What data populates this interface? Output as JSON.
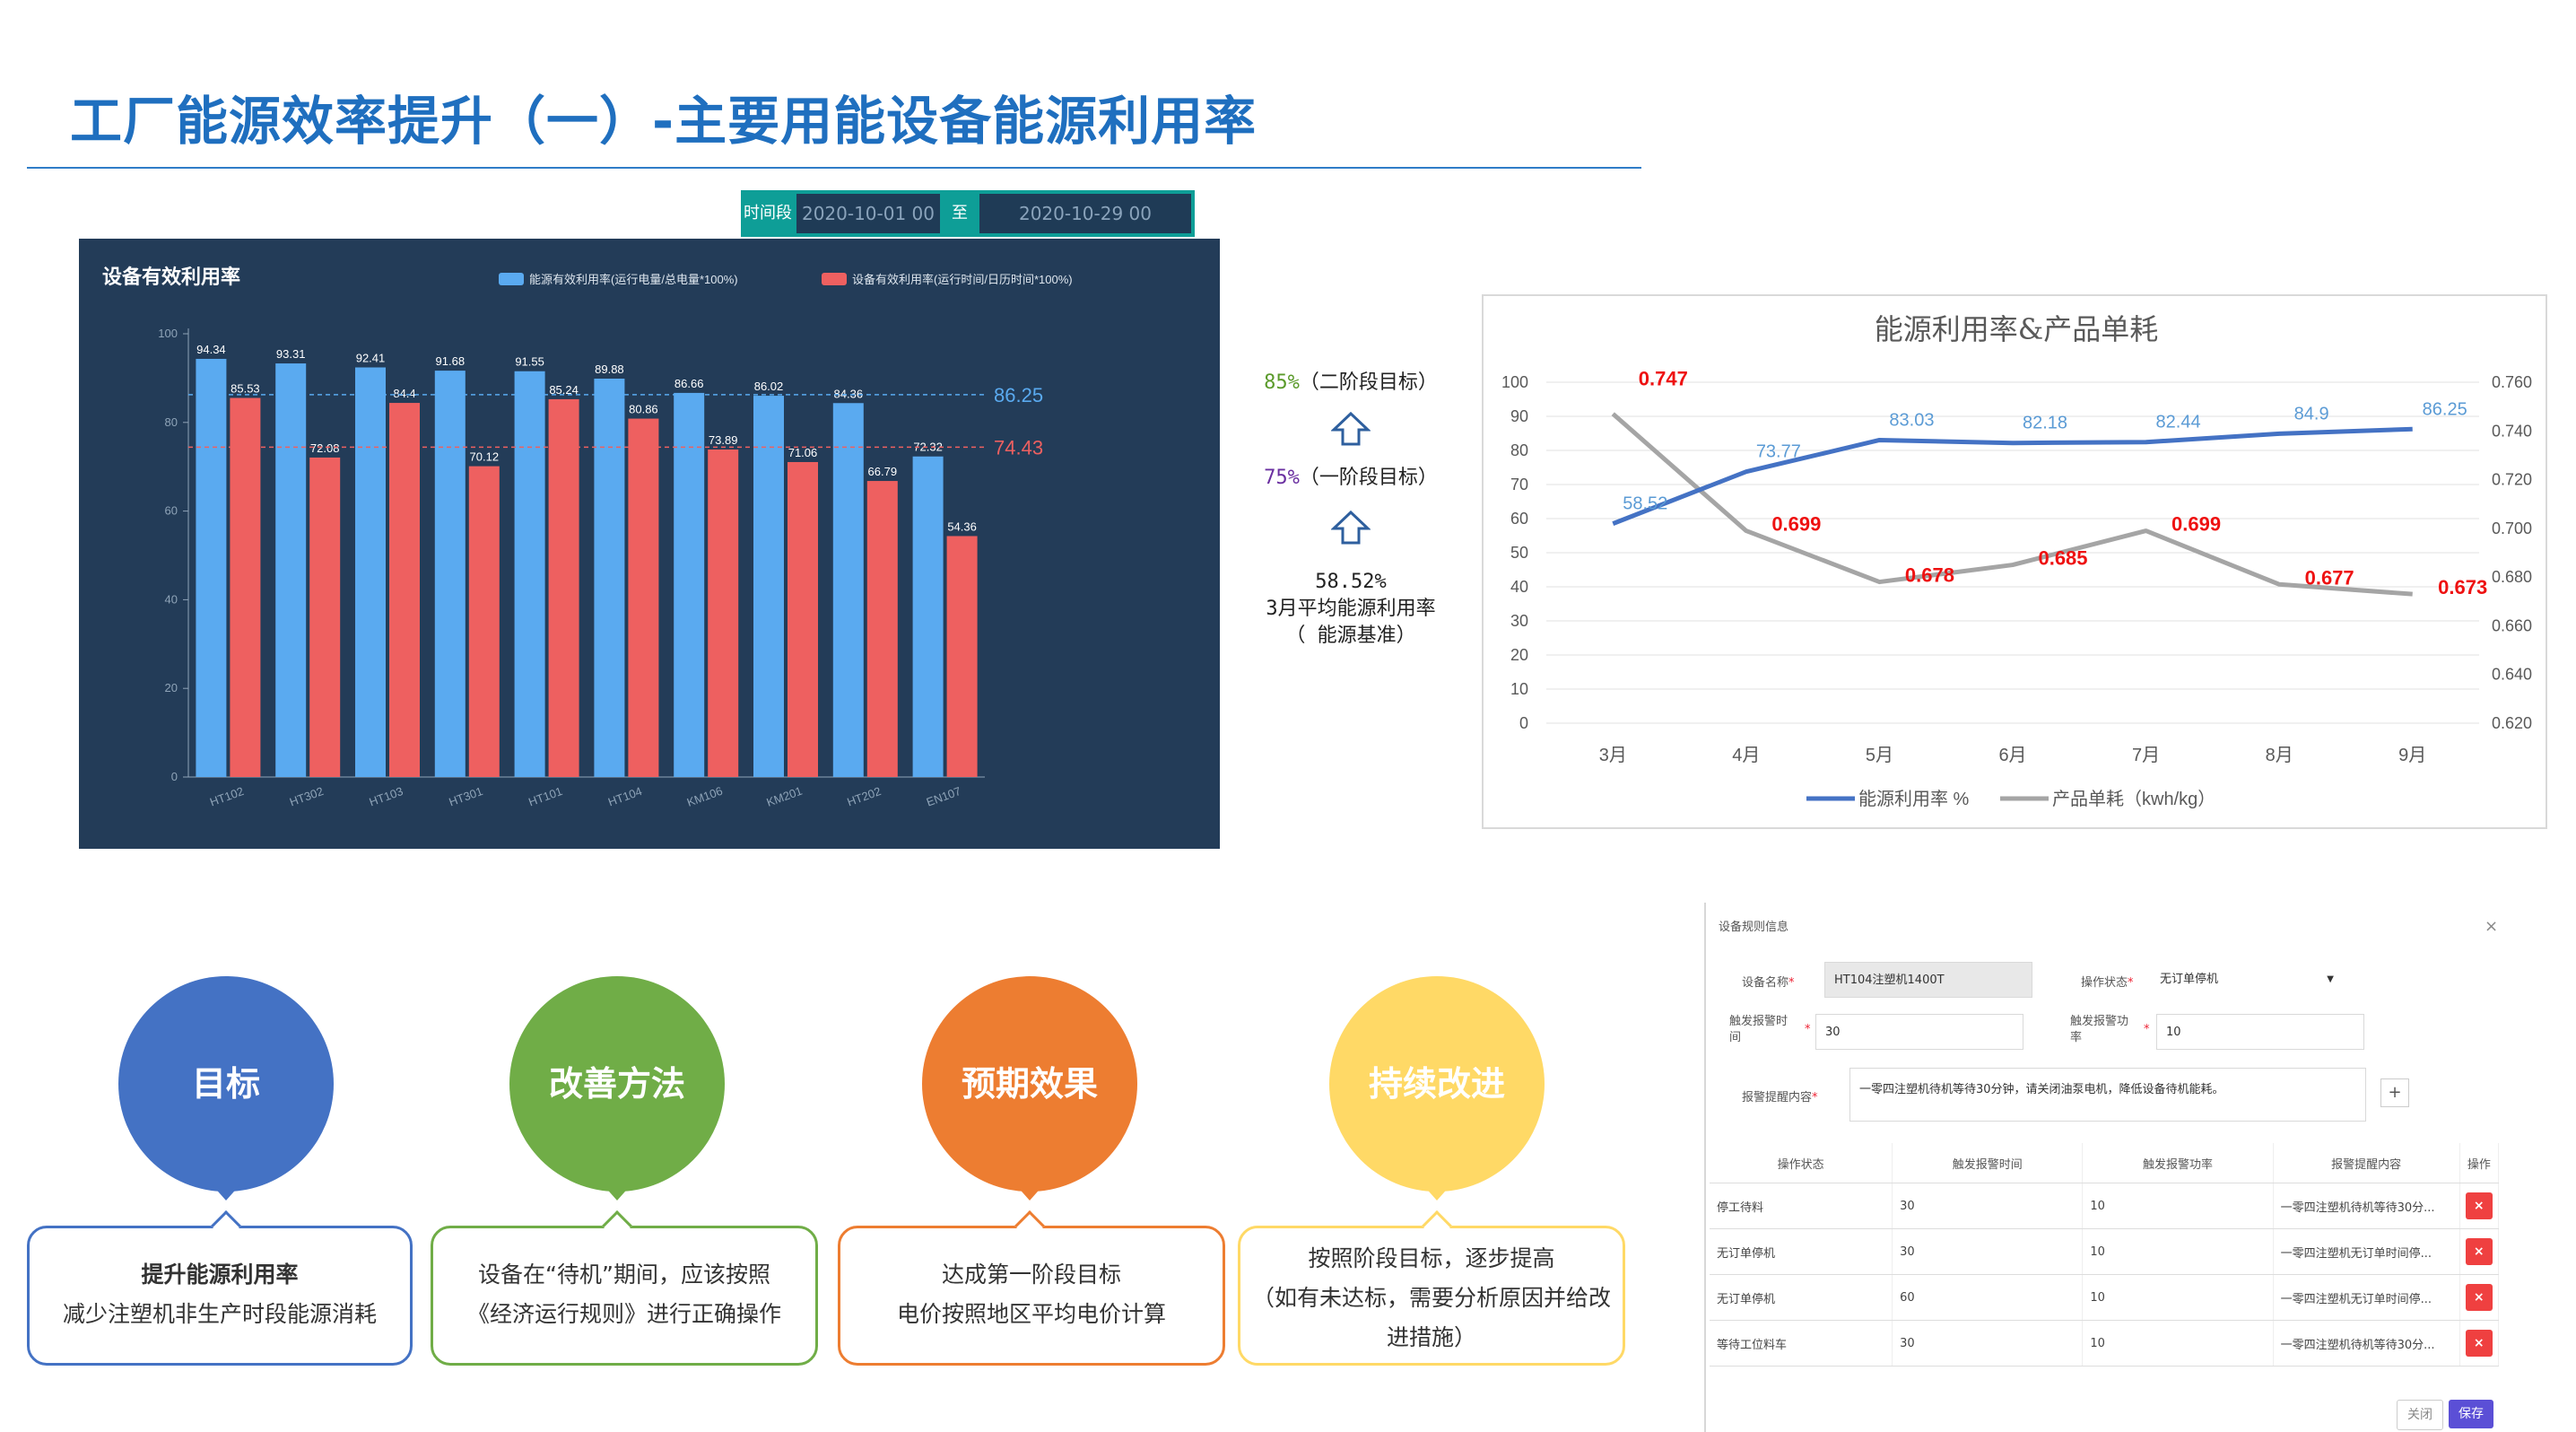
{
  "title": "工厂能源效率提升（一）-主要用能设备能源利用率",
  "date_range": {
    "label": "时间段",
    "start": "2020-10-01 00",
    "sep": "至",
    "end": "2020-10-29 00"
  },
  "middle": {
    "target2": "85%（二阶段目标）",
    "target1": "75%（一阶段目标）",
    "baseline_value": "58.52%",
    "baseline_line1": "3月平均能源利用率",
    "baseline_line2": "（ 能源基准）",
    "color_target2": "#5a9a2a",
    "color_target1": "#6a2fa0",
    "arrow_color": "#2e5f9e"
  },
  "chart_data": [
    {
      "type": "bar",
      "title": "设备有效利用率",
      "categories": [
        "HT102",
        "HT302",
        "HT103",
        "HT301",
        "HT101",
        "HT104",
        "KM106",
        "KM201",
        "HT202",
        "EN107"
      ],
      "series": [
        {
          "name": "能源有效利用率(运行电量/总电量*100%)",
          "color": "#5aaaf0",
          "values": [
            94.34,
            93.31,
            92.41,
            91.68,
            91.55,
            89.88,
            86.66,
            86.02,
            84.36,
            72.32
          ]
        },
        {
          "name": "设备有效利用率(运行时间/日历时间*100%)",
          "color": "#ee6060",
          "values": [
            85.53,
            72.08,
            84.4,
            70.12,
            85.24,
            80.86,
            73.89,
            71.06,
            66.79,
            54.36
          ]
        }
      ],
      "reference_lines": [
        {
          "value": 86.25,
          "label": "86.25",
          "color": "#5aaaf0"
        },
        {
          "value": 74.43,
          "label": "74.43",
          "color": "#ee6060"
        }
      ],
      "yticks": [
        "0",
        "20",
        "40",
        "60",
        "80",
        "100"
      ],
      "ylim": [
        0,
        100
      ],
      "legend": "top-right"
    },
    {
      "type": "line",
      "title": "能源利用率&产品单耗",
      "categories": [
        "3月",
        "4月",
        "5月",
        "6月",
        "7月",
        "8月",
        "9月"
      ],
      "series": [
        {
          "name": "能源利用率 %",
          "color": "#4472c4",
          "axis": "left",
          "values": [
            58.52,
            73.77,
            83.03,
            82.18,
            82.44,
            84.9,
            86.25
          ]
        },
        {
          "name": "产品单耗（kwh/kg）",
          "color": "#a5a5a5",
          "axis": "right",
          "values": [
            0.747,
            0.699,
            0.678,
            0.685,
            0.699,
            0.677,
            0.673
          ]
        }
      ],
      "y_left_ticks": [
        "0",
        "10",
        "20",
        "30",
        "40",
        "50",
        "60",
        "70",
        "80",
        "90",
        "100"
      ],
      "y_right_ticks": [
        "0.620",
        "0.640",
        "0.660",
        "0.680",
        "0.700",
        "0.720",
        "0.740",
        "0.760"
      ],
      "y_left_lim": [
        0,
        100
      ],
      "y_right_lim": [
        0.62,
        0.76
      ],
      "legend": "bottom"
    }
  ],
  "cards": [
    {
      "circle": "目标",
      "color": "#4472c4",
      "line1": "提升能源利用率",
      "line2": "减少注塑机非生产时段能源消耗",
      "line3": ""
    },
    {
      "circle": "改善方法",
      "color": "#70ad47",
      "line1": "设备在“待机”期间，应该按照",
      "line2": "《经济运行规则》进行正确操作",
      "line3": ""
    },
    {
      "circle": "预期效果",
      "color": "#ed7d31",
      "line1": "达成第一阶段目标",
      "line2": "电价按照地区平均电价计算",
      "line3": ""
    },
    {
      "circle": "持续改进",
      "color": "#ffd966",
      "line1": "按照阶段目标，逐步提高",
      "line2": "（如有未达标，需要分析原因并给改",
      "line3": "进措施）"
    }
  ],
  "dialog": {
    "title": "设备规则信息",
    "close": "×",
    "device_label": "设备名称",
    "device_value": "HT104注塑机1400T",
    "state_label": "操作状态",
    "state_value": "无订单停机",
    "time_label_1": "触发报警时",
    "time_label_2": "间",
    "time_value": "30",
    "power_label_1": "触发报警功",
    "power_label_2": "率",
    "power_value": "10",
    "content_label": "报警提醒内容",
    "content_value": "一零四注塑机待机等待30分钟，请关闭油泵电机，降低设备待机能耗。",
    "plus": "+",
    "columns": [
      "操作状态",
      "触发报警时间",
      "触发报警功率",
      "报警提醒内容",
      "操作"
    ],
    "rows": [
      {
        "state": "停工待料",
        "time": "30",
        "power": "10",
        "content": "一零四注塑机待机等待30分..."
      },
      {
        "state": "无订单停机",
        "time": "30",
        "power": "10",
        "content": "一零四注塑机无订单时间停..."
      },
      {
        "state": "无订单停机",
        "time": "60",
        "power": "10",
        "content": "一零四注塑机无订单时间停..."
      },
      {
        "state": "等待工位料车",
        "time": "30",
        "power": "10",
        "content": "一零四注塑机待机等待30分..."
      }
    ],
    "delete": "×",
    "cancel": "关闭",
    "save": "保存"
  }
}
